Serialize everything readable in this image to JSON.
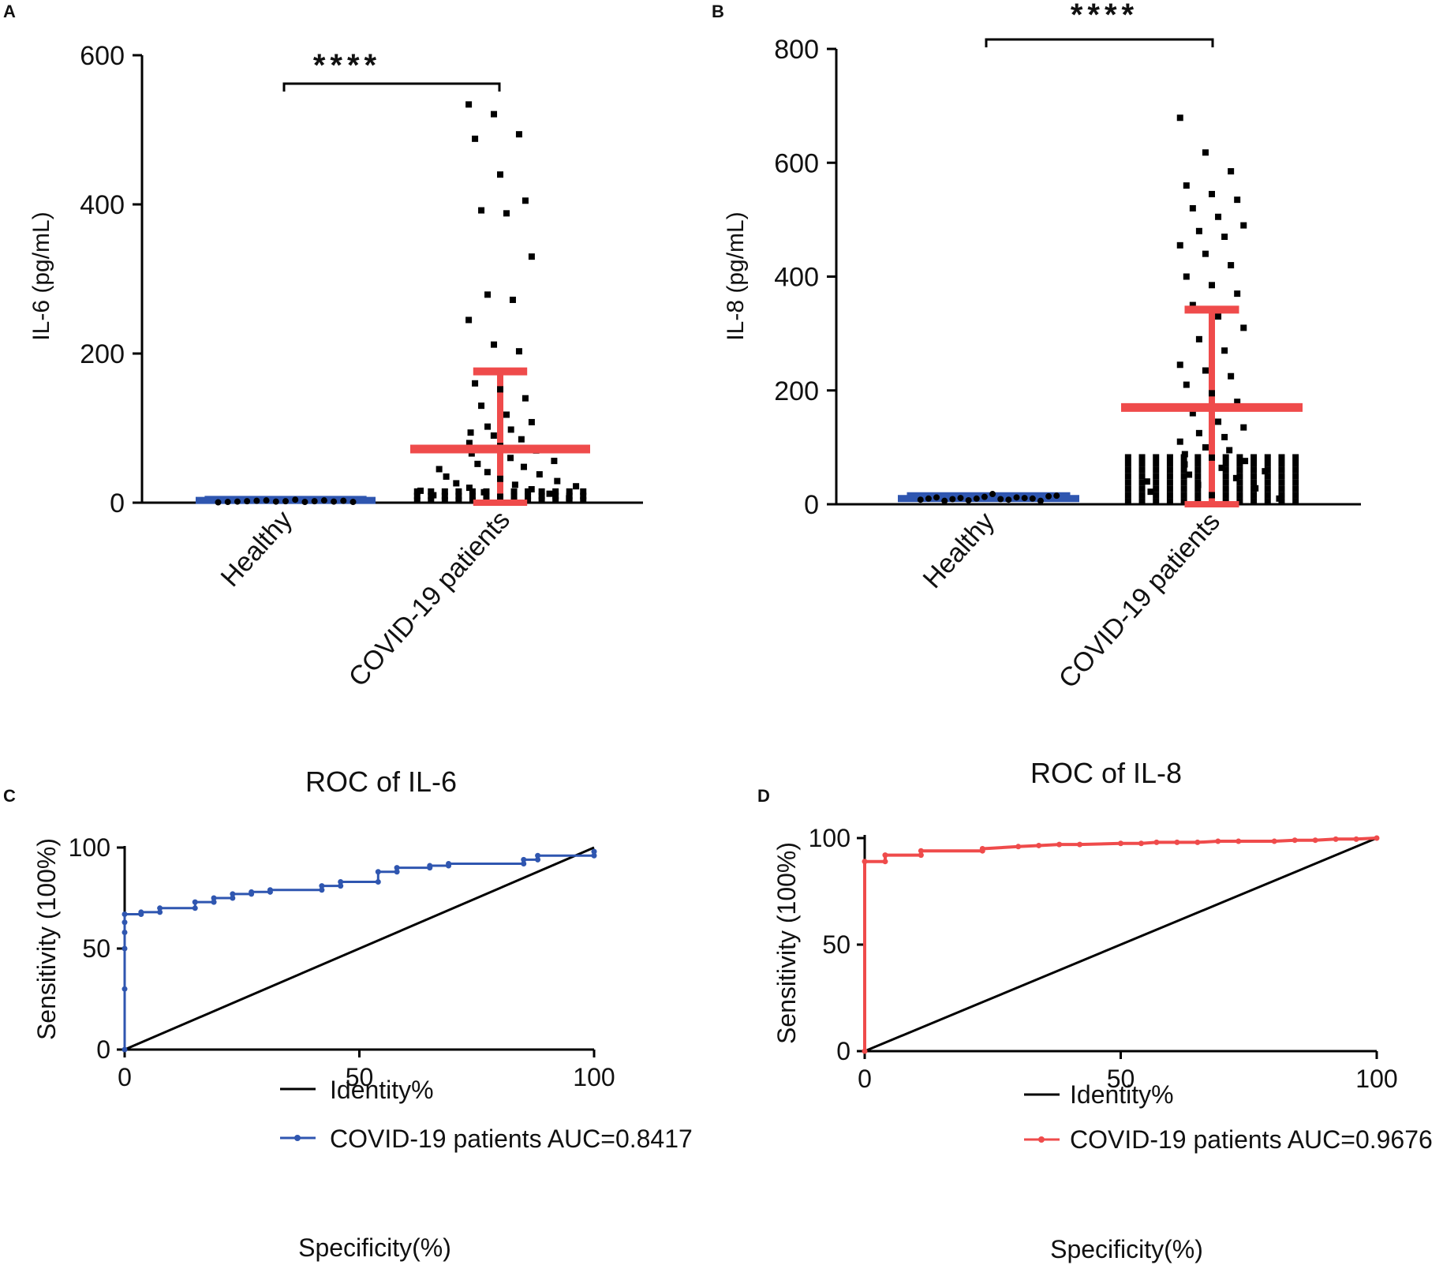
{
  "colors": {
    "healthy": "#2f56b0",
    "covid_error": "#ef4b4b",
    "points": "#000000",
    "roc_il6": "#2f56b0",
    "roc_il8": "#ef4b4b",
    "identity": "#000000"
  },
  "chart_data": [
    {
      "panel": "A",
      "type": "scatter",
      "title": "",
      "ylabel": "IL-6 (pg/mL)",
      "ylim": [
        0,
        600
      ],
      "yticks": [
        "0",
        "200",
        "400",
        "600"
      ],
      "categories": [
        "Healthy",
        "COVID-19 patients"
      ],
      "significance": "****",
      "summary": [
        {
          "category": "Healthy",
          "mean": 3,
          "sd_low": 0,
          "sd_high": 6
        },
        {
          "category": "COVID-19 patients",
          "mean": 72,
          "sd_low": 0,
          "sd_high": 176
        }
      ],
      "healthy_points": [
        0.5,
        1,
        1.5,
        2,
        2.5,
        3,
        1.5,
        2,
        4,
        1,
        2,
        3,
        1.5,
        2.5,
        1
      ],
      "covid_points": [
        534,
        521,
        494,
        488,
        440,
        405,
        392,
        388,
        330,
        279,
        272,
        245,
        212,
        203,
        160,
        152,
        140,
        130,
        118,
        108,
        102,
        98,
        94,
        90,
        85,
        80,
        76,
        70,
        66,
        60,
        56,
        52,
        48,
        45,
        41,
        38,
        35,
        32,
        29,
        26,
        24,
        22,
        20,
        18,
        16,
        14,
        12,
        10,
        8,
        6
      ]
    },
    {
      "panel": "B",
      "type": "scatter",
      "title": "",
      "ylabel": "IL-8 (pg/mL)",
      "ylim": [
        0,
        800
      ],
      "yticks": [
        "0",
        "200",
        "400",
        "600",
        "800"
      ],
      "categories": [
        "Healthy",
        "COVID-19 patients"
      ],
      "significance": "****",
      "summary": [
        {
          "category": "Healthy",
          "mean": 10,
          "sd_low": 5,
          "sd_high": 17
        },
        {
          "category": "COVID-19 patients",
          "mean": 170,
          "sd_low": 0,
          "sd_high": 342
        }
      ],
      "healthy_points": [
        8,
        10,
        12,
        6,
        9,
        11,
        7,
        10,
        13,
        18,
        9,
        8,
        12,
        11,
        10,
        6,
        14,
        15
      ],
      "covid_points": [
        679,
        618,
        585,
        560,
        545,
        535,
        520,
        505,
        490,
        480,
        470,
        455,
        440,
        420,
        400,
        385,
        370,
        350,
        330,
        310,
        290,
        270,
        245,
        235,
        225,
        210,
        195,
        180,
        160,
        145,
        135,
        125,
        118,
        110,
        100,
        95,
        88,
        82,
        76,
        70,
        64,
        58,
        52,
        46,
        40,
        34,
        28,
        22,
        16,
        10
      ]
    },
    {
      "panel": "C",
      "type": "line",
      "title": "ROC of IL-6",
      "xlabel": "Specificity(%)",
      "ylabel": "Sensitivity (100%)",
      "xlim": [
        0,
        100
      ],
      "ylim": [
        0,
        100
      ],
      "xticks": [
        "0",
        "50",
        "100"
      ],
      "yticks": [
        "0",
        "50",
        "100"
      ],
      "series": [
        {
          "name": "Identity%",
          "x": [
            0,
            100
          ],
          "y": [
            0,
            100
          ]
        },
        {
          "name": "COVID-19 patients AUC=0.8417",
          "x": [
            0,
            0,
            0,
            0,
            0,
            0,
            3.5,
            3.5,
            7.5,
            7.5,
            15,
            15,
            19,
            19,
            23,
            23,
            27,
            27,
            31,
            31,
            42,
            42,
            46,
            46,
            54,
            54,
            58,
            58,
            65,
            65,
            69,
            69,
            85,
            85,
            88,
            88,
            100,
            100
          ],
          "y": [
            0,
            30,
            50,
            58,
            63,
            67,
            67,
            68,
            68,
            70,
            70,
            73,
            73,
            75,
            75,
            77,
            77,
            78,
            78,
            79,
            79,
            81,
            81,
            83,
            83,
            88,
            88,
            90,
            90,
            91,
            91,
            92,
            92,
            94,
            94,
            96,
            96,
            98
          ]
        }
      ]
    },
    {
      "panel": "D",
      "type": "line",
      "title": "ROC of IL-8",
      "xlabel": "Specificity(%)",
      "ylabel": "Sensitivity (100%)",
      "xlim": [
        0,
        100
      ],
      "ylim": [
        0,
        100
      ],
      "xticks": [
        "0",
        "50",
        "100"
      ],
      "yticks": [
        "0",
        "50",
        "100"
      ],
      "series": [
        {
          "name": "Identity%",
          "x": [
            0,
            100
          ],
          "y": [
            0,
            100
          ]
        },
        {
          "name": "COVID-19 patients AUC=0.9676",
          "x": [
            0,
            0,
            4,
            4,
            11,
            11,
            23,
            23,
            30,
            34,
            38,
            42,
            50,
            54,
            57,
            61,
            65,
            69,
            73,
            80,
            84,
            88,
            92,
            96,
            100
          ],
          "y": [
            0,
            89,
            89,
            92,
            92,
            94,
            94,
            95,
            96,
            96.5,
            97,
            97,
            97.5,
            97.5,
            98,
            98,
            98,
            98.5,
            98.5,
            98.5,
            99,
            99,
            99.5,
            99.5,
            100
          ]
        }
      ]
    }
  ]
}
